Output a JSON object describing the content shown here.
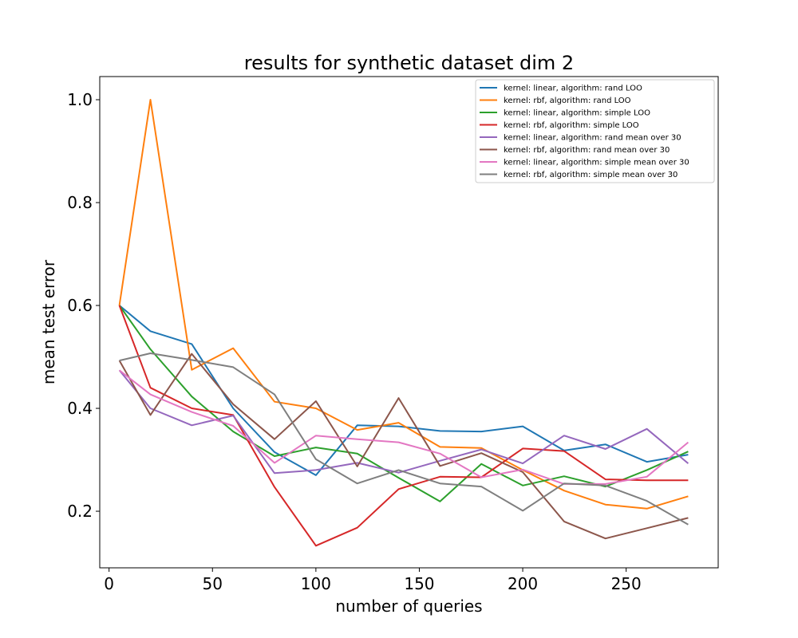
{
  "chart_data": {
    "type": "line",
    "title": "results for synthetic dataset dim 2",
    "xlabel": "number of queries",
    "ylabel": "mean test error",
    "xlim": [
      -4.5,
      294.5
    ],
    "ylim": [
      0.09,
      1.045
    ],
    "xticks": [
      0,
      50,
      100,
      150,
      200,
      250
    ],
    "xtick_labels": [
      "0",
      "50",
      "100",
      "150",
      "200",
      "250"
    ],
    "yticks": [
      0.2,
      0.4,
      0.6,
      0.8,
      1.0
    ],
    "ytick_labels": [
      "0.2",
      "0.4",
      "0.6",
      "0.8",
      "1.0"
    ],
    "grid": false,
    "legend_position": "top-right",
    "x": [
      5,
      20,
      40,
      60,
      80,
      100,
      120,
      140,
      160,
      180,
      200,
      220,
      240,
      260,
      280
    ],
    "series": [
      {
        "name": "kernel: linear, algorithm: rand LOO",
        "color": "#1f77b4",
        "values": [
          0.6,
          0.55,
          0.525,
          0.4,
          0.315,
          0.27,
          0.367,
          0.365,
          0.356,
          0.355,
          0.365,
          0.318,
          0.33,
          0.296,
          0.31
        ]
      },
      {
        "name": "kernel: rbf, algorithm: rand LOO",
        "color": "#ff7f0e",
        "values": [
          0.6,
          1.0,
          0.475,
          0.517,
          0.413,
          0.4,
          0.358,
          0.372,
          0.325,
          0.323,
          0.28,
          0.24,
          0.213,
          0.205,
          0.229
        ]
      },
      {
        "name": "kernel: linear, algorithm: simple LOO",
        "color": "#2ca02c",
        "values": [
          0.6,
          0.515,
          0.423,
          0.355,
          0.307,
          0.324,
          0.312,
          0.265,
          0.219,
          0.292,
          0.25,
          0.268,
          0.248,
          0.28,
          0.316
        ]
      },
      {
        "name": "kernel: rbf, algorithm: simple LOO",
        "color": "#d62728",
        "values": [
          0.6,
          0.44,
          0.4,
          0.387,
          0.247,
          0.133,
          0.168,
          0.243,
          0.267,
          0.266,
          0.322,
          0.317,
          0.262,
          0.26,
          0.26
        ]
      },
      {
        "name": "kernel: linear, algorithm: rand mean over 30",
        "color": "#9467bd",
        "values": [
          0.474,
          0.4,
          0.367,
          0.386,
          0.274,
          0.28,
          0.294,
          0.275,
          0.298,
          0.32,
          0.293,
          0.347,
          0.321,
          0.36,
          0.293
        ]
      },
      {
        "name": "kernel: rbf, algorithm: rand mean over 30",
        "color": "#8c564b",
        "values": [
          0.493,
          0.387,
          0.506,
          0.408,
          0.34,
          0.414,
          0.287,
          0.42,
          0.288,
          0.313,
          0.276,
          0.18,
          0.147,
          0.167,
          0.187
        ]
      },
      {
        "name": "kernel: linear, algorithm: simple mean over 30",
        "color": "#e377c2",
        "values": [
          0.474,
          0.427,
          0.393,
          0.366,
          0.294,
          0.347,
          0.34,
          0.334,
          0.312,
          0.266,
          0.281,
          0.253,
          0.253,
          0.267,
          0.334
        ]
      },
      {
        "name": "kernel: rbf, algorithm: simple mean over 30",
        "color": "#7f7f7f",
        "values": [
          0.493,
          0.507,
          0.494,
          0.48,
          0.427,
          0.301,
          0.254,
          0.28,
          0.254,
          0.248,
          0.201,
          0.254,
          0.25,
          0.22,
          0.174
        ]
      }
    ]
  }
}
